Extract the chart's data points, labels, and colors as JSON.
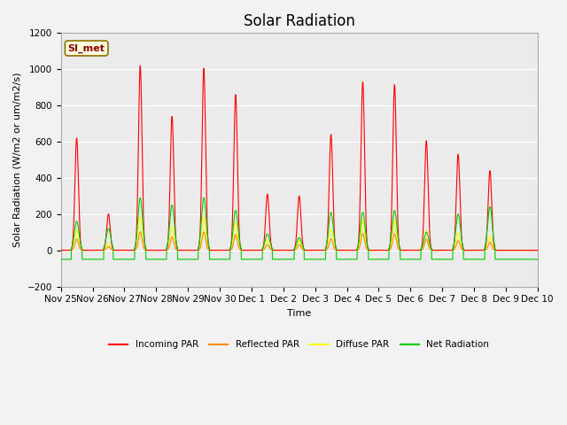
{
  "title": "Solar Radiation",
  "xlabel": "Time",
  "ylabel": "Solar Radiation (W/m2 or um/m2/s)",
  "ylim": [
    -200,
    1200
  ],
  "yticks": [
    -200,
    0,
    200,
    400,
    600,
    800,
    1000,
    1200
  ],
  "annotation_text": "SI_met",
  "annotation_color": "#8B0000",
  "annotation_bg": "#FFFFE0",
  "annotation_border": "#8B7000",
  "fig_bg": "#F2F2F2",
  "plot_bg": "#EBEBEB",
  "grid_color": "#FFFFFF",
  "title_fontsize": 12,
  "label_fontsize": 8,
  "tick_fontsize": 7.5,
  "line_colors": {
    "incoming": "#FF0000",
    "reflected": "#FF8C00",
    "diffuse": "#FFFF00",
    "net": "#00CC00"
  },
  "x_tick_labels": [
    "Nov 25",
    "Nov 26",
    "Nov 27",
    "Nov 28",
    "Nov 29",
    "Nov 30",
    "Dec 1",
    "Dec 2",
    "Dec 3",
    "Dec 4",
    "Dec 5",
    "Dec 6",
    "Dec 7",
    "Dec 8",
    "Dec 9",
    "Dec 10"
  ],
  "day_peaks_incoming": [
    620,
    200,
    1020,
    740,
    1005,
    860,
    310,
    300,
    640,
    930,
    915,
    605,
    530,
    440,
    0
  ],
  "day_peaks_net": [
    160,
    120,
    290,
    250,
    290,
    220,
    90,
    70,
    210,
    210,
    220,
    100,
    200,
    240,
    0
  ],
  "n_days": 15,
  "night_base": -50
}
